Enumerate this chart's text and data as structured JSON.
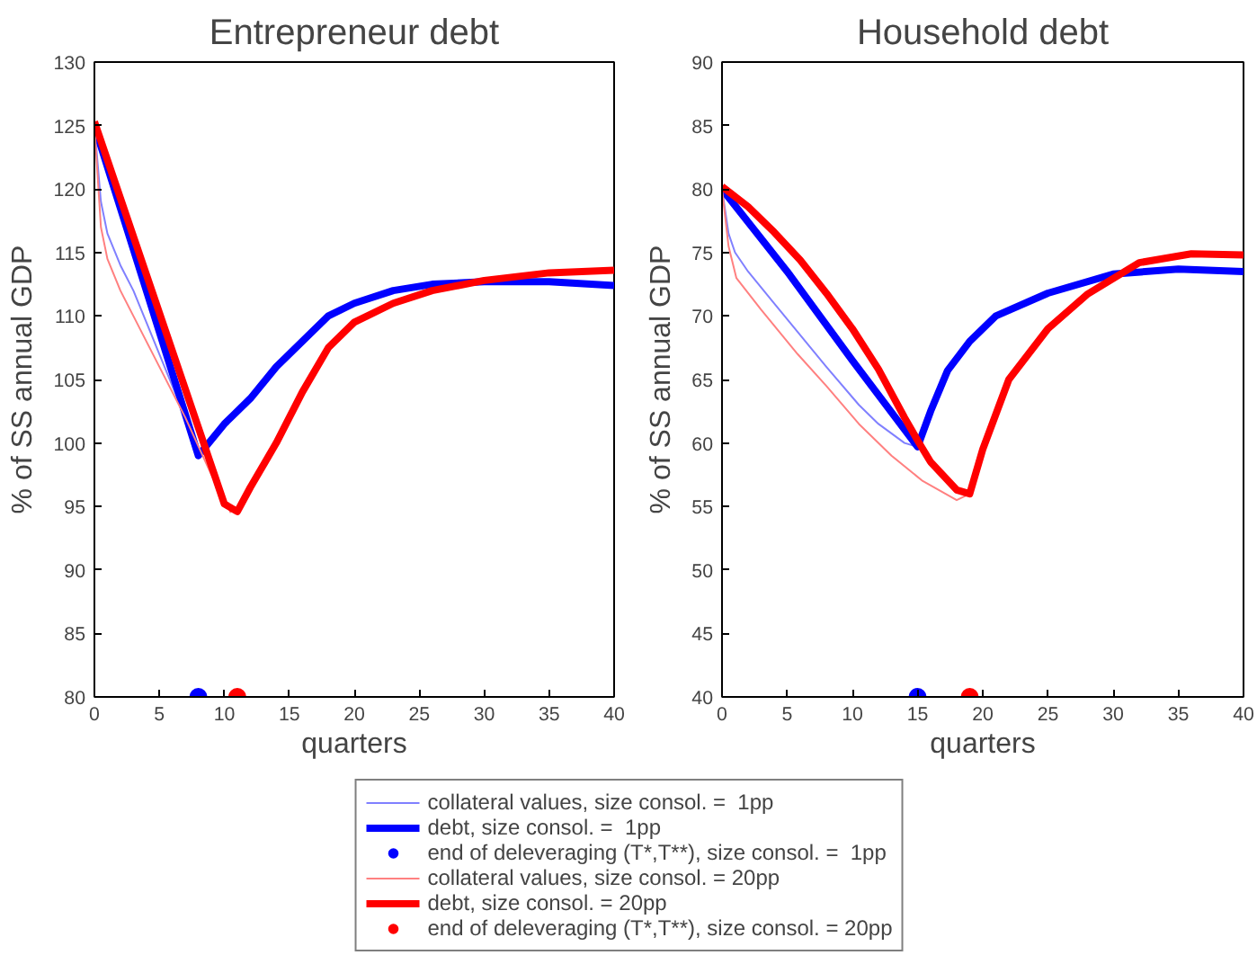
{
  "chart_data": [
    {
      "type": "line",
      "title": "Entrepreneur debt",
      "xlabel": "quarters",
      "ylabel": "% of SS annual GDP",
      "xlim": [
        0,
        40
      ],
      "xticks": [
        0,
        5,
        10,
        15,
        20,
        25,
        30,
        35,
        40
      ],
      "ylim": [
        80,
        130
      ],
      "yticks": [
        80,
        85,
        90,
        95,
        100,
        105,
        110,
        115,
        120,
        125,
        130
      ],
      "legend": "bottom",
      "series": [
        {
          "name": "collateral values, size consol. =  1pp",
          "color": "#8080ff",
          "x": [
            0,
            0.5,
            1,
            2,
            3,
            4,
            5,
            6,
            7,
            8
          ],
          "values": [
            125,
            119,
            116.5,
            114,
            112,
            109.5,
            107,
            104.5,
            102,
            99.5
          ]
        },
        {
          "name": "debt, size consol. =  1pp",
          "color": "#0000ff",
          "x": [
            0,
            8,
            10,
            12,
            14,
            16,
            18,
            20,
            23,
            26,
            30,
            35,
            40
          ],
          "values": [
            125,
            99,
            101.5,
            103.5,
            106,
            108,
            110,
            111,
            112,
            112.5,
            112.7,
            112.7,
            112.4
          ]
        },
        {
          "name": "end of deleveraging (T*,T**), size consol. =  1pp",
          "color": "#0000ff",
          "type": "scatter",
          "marker": "circle",
          "x": [
            8
          ],
          "values": [
            80
          ]
        },
        {
          "name": "collateral values, size consol. = 20pp",
          "color": "#ff8080",
          "x": [
            0,
            0.5,
            1,
            2,
            3,
            5,
            7,
            9,
            10.5
          ],
          "values": [
            125,
            117,
            114.5,
            112,
            110,
            106,
            102,
            97.5,
            94.5
          ]
        },
        {
          "name": "debt, size consol. = 20pp",
          "color": "#ff0000",
          "x": [
            0,
            10,
            11,
            12,
            14,
            16,
            18,
            20,
            23,
            26,
            30,
            35,
            40
          ],
          "values": [
            125.3,
            95.2,
            94.6,
            96.5,
            100,
            104,
            107.5,
            109.5,
            111,
            112,
            112.8,
            113.4,
            113.6
          ]
        },
        {
          "name": "end of deleveraging (T*,T**), size consol. = 20pp",
          "color": "#ff0000",
          "type": "scatter",
          "marker": "circle",
          "x": [
            11
          ],
          "values": [
            80
          ]
        }
      ]
    },
    {
      "type": "line",
      "title": "Household debt",
      "xlabel": "quarters",
      "ylabel": "% of SS annual GDP",
      "xlim": [
        0,
        40
      ],
      "xticks": [
        0,
        5,
        10,
        15,
        20,
        25,
        30,
        35,
        40
      ],
      "ylim": [
        40,
        90
      ],
      "yticks": [
        40,
        45,
        50,
        55,
        60,
        65,
        70,
        75,
        80,
        85,
        90
      ],
      "series": [
        {
          "color": "#8080ff",
          "x": [
            0,
            0.5,
            1,
            2,
            4,
            6,
            8,
            10.5,
            12,
            14,
            15
          ],
          "values": [
            80,
            76.5,
            75,
            73.5,
            71,
            68.5,
            66,
            63,
            61.5,
            60,
            59.7
          ]
        },
        {
          "color": "#0000ff",
          "x": [
            0,
            5,
            10,
            15,
            16,
            17.3,
            19,
            21,
            25,
            30,
            35,
            40
          ],
          "values": [
            80,
            73.5,
            66.5,
            59.7,
            62.5,
            65.7,
            68,
            70,
            71.8,
            73.3,
            73.7,
            73.5
          ]
        },
        {
          "color": "#0000ff",
          "type": "scatter",
          "marker": "circle",
          "x": [
            15
          ],
          "values": [
            40
          ]
        },
        {
          "color": "#ff8080",
          "x": [
            0,
            0.5,
            1.1,
            3,
            5.8,
            8,
            10.5,
            13,
            15.4,
            18,
            19
          ],
          "values": [
            80,
            75.5,
            73,
            70.5,
            67,
            64.5,
            61.5,
            59,
            57,
            55.5,
            56
          ]
        },
        {
          "color": "#ff0000",
          "x": [
            0,
            2,
            4,
            6,
            8,
            10,
            12,
            14,
            15,
            16,
            18,
            19,
            20,
            22,
            25,
            28,
            32,
            36,
            40
          ],
          "values": [
            80.2,
            78.6,
            76.6,
            74.4,
            71.8,
            69,
            65.8,
            62,
            60.2,
            58.5,
            56.3,
            56,
            59.5,
            65,
            69,
            71.7,
            74.2,
            74.9,
            74.8
          ]
        },
        {
          "color": "#ff0000",
          "type": "scatter",
          "marker": "circle",
          "x": [
            19
          ],
          "values": [
            40
          ]
        }
      ]
    }
  ]
}
